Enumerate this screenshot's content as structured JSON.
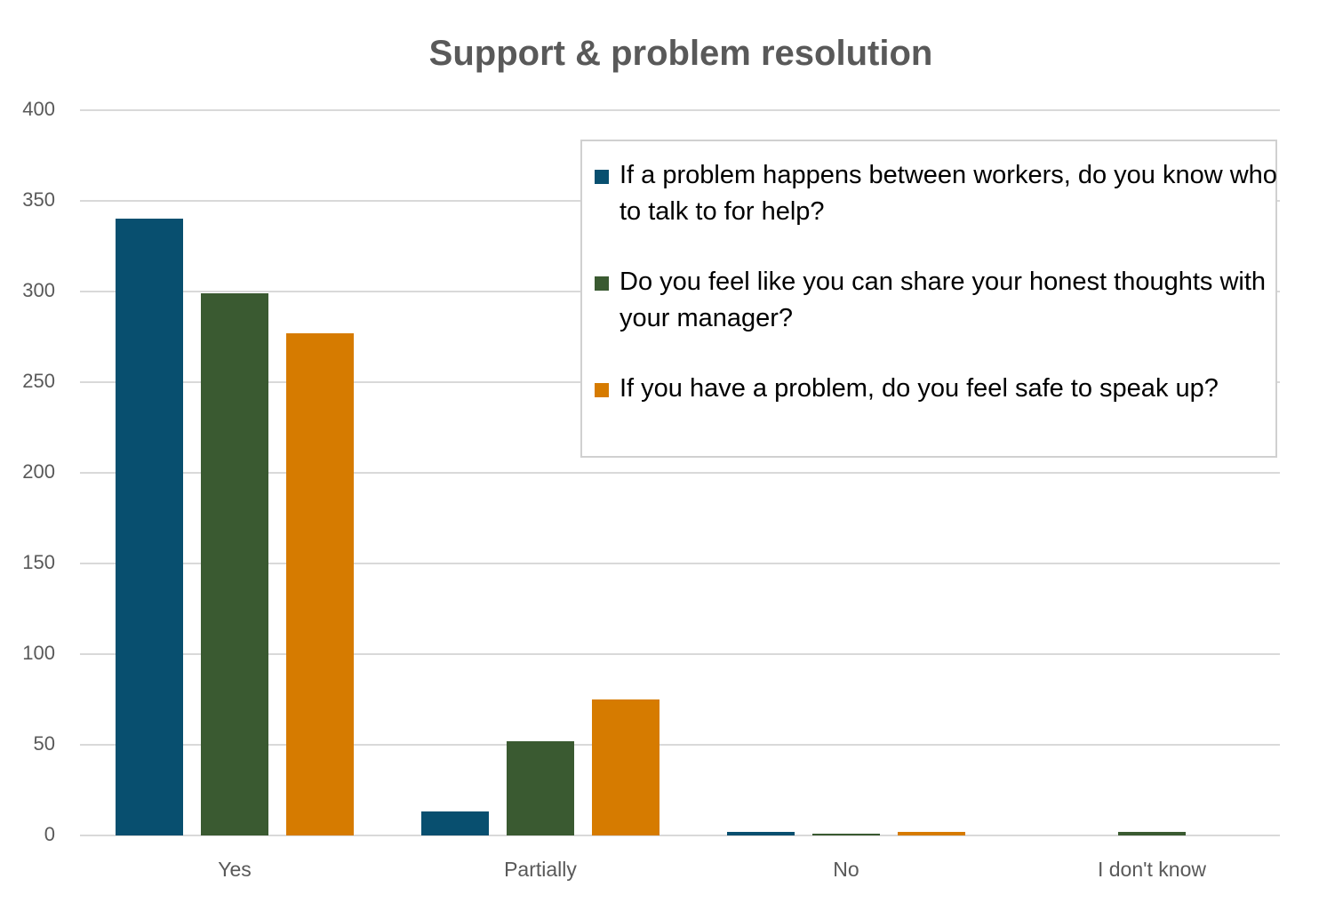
{
  "chart_data": {
    "type": "bar",
    "title": "Support & problem resolution",
    "xlabel": "",
    "ylabel": "",
    "ylim": [
      0,
      400
    ],
    "yticks": [
      "0",
      "50",
      "100",
      "150",
      "200",
      "250",
      "300",
      "350",
      "400"
    ],
    "grid": true,
    "legend_position": "upper right (inset box)",
    "categories": [
      "Yes",
      "Partially",
      "No",
      "I don't know"
    ],
    "series": [
      {
        "name": "If a problem happens between workers, do you know who to talk to for help?",
        "color": "#084f6f",
        "values": [
          340,
          13,
          2,
          0
        ]
      },
      {
        "name": "Do you feel like you can share your honest thoughts with your manager?",
        "color": "#3a5a31",
        "values": [
          299,
          52,
          1,
          2
        ]
      },
      {
        "name": "If you have a problem, do you feel safe to speak up?",
        "color": "#d67b00",
        "values": [
          277,
          75,
          2,
          0
        ]
      }
    ]
  }
}
